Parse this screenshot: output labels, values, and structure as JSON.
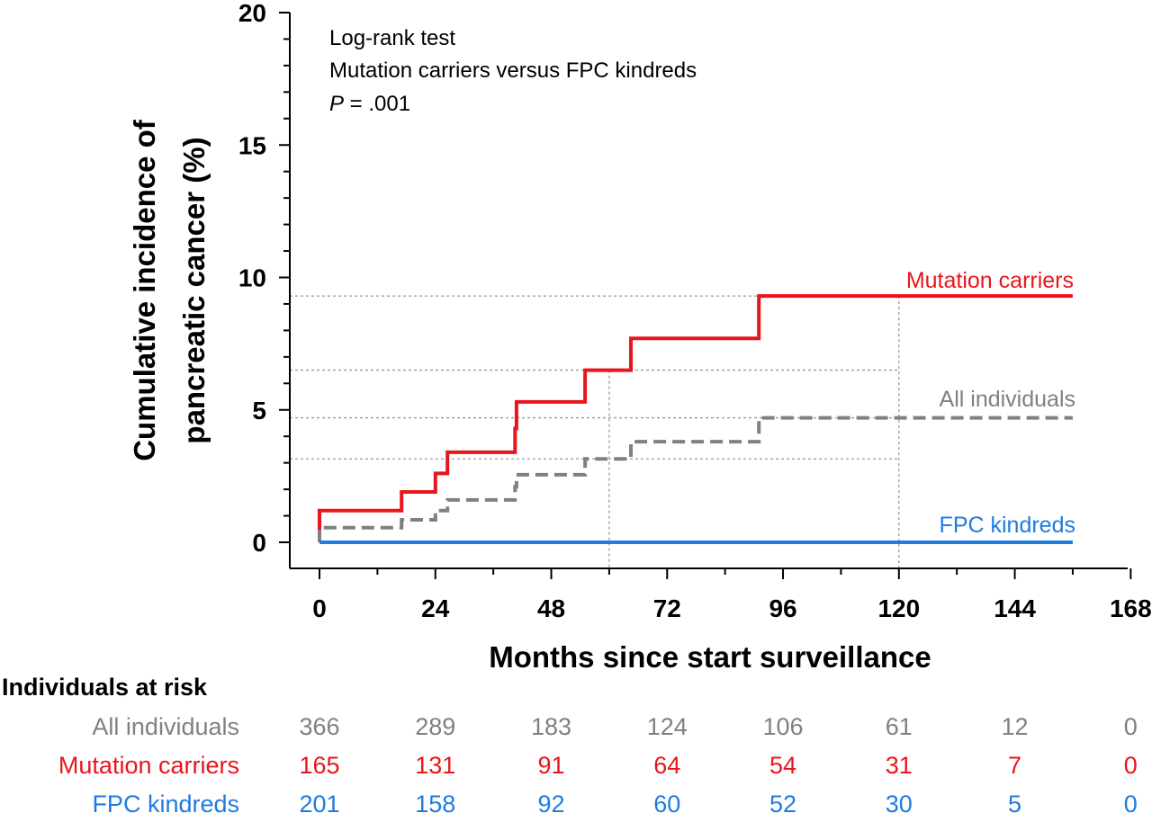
{
  "colors": {
    "mutation": "#e8161c",
    "all": "#808080",
    "fpc": "#1f7be0",
    "text": "#000000",
    "ref": "#999999"
  },
  "chart_data": {
    "type": "line",
    "ylabel": [
      "Cumulative incidence of",
      "pancreatic cancer (%)"
    ],
    "xlabel": "Months since start surveillance",
    "xlim": [
      0,
      168
    ],
    "ylim": [
      0,
      20
    ],
    "x_ticks": [
      0,
      24,
      48,
      72,
      96,
      120,
      144,
      168
    ],
    "y_ticks": [
      0,
      5,
      10,
      15,
      20
    ],
    "annotation": {
      "line1": "Log-rank test",
      "line2": "Mutation carriers versus FPC kindreds",
      "p_label": "P",
      "p_value": " = .001"
    },
    "series": [
      {
        "name": "Mutation carriers",
        "key": "mutation",
        "style": "solid",
        "steps": [
          [
            0,
            0
          ],
          [
            0,
            1.2
          ],
          [
            17,
            1.2
          ],
          [
            17,
            1.9
          ],
          [
            24,
            1.9
          ],
          [
            24,
            2.6
          ],
          [
            26.5,
            2.6
          ],
          [
            26.5,
            3.4
          ],
          [
            40.5,
            3.4
          ],
          [
            40.5,
            4.3
          ],
          [
            40.8,
            4.3
          ],
          [
            40.8,
            5.3
          ],
          [
            55,
            5.3
          ],
          [
            55,
            6.5
          ],
          [
            64.5,
            6.5
          ],
          [
            64.5,
            7.7
          ],
          [
            91,
            7.7
          ],
          [
            91,
            9.3
          ],
          [
            156,
            9.3
          ]
        ]
      },
      {
        "name": "All individuals",
        "key": "all",
        "style": "dashed",
        "steps": [
          [
            0,
            0
          ],
          [
            0,
            0.55
          ],
          [
            17,
            0.55
          ],
          [
            17,
            0.85
          ],
          [
            24,
            0.85
          ],
          [
            24,
            1.2
          ],
          [
            26.5,
            1.2
          ],
          [
            26.5,
            1.6
          ],
          [
            40.5,
            1.6
          ],
          [
            40.5,
            2.1
          ],
          [
            40.8,
            2.1
          ],
          [
            40.8,
            2.55
          ],
          [
            55,
            2.55
          ],
          [
            55,
            3.15
          ],
          [
            64.5,
            3.15
          ],
          [
            64.5,
            3.8
          ],
          [
            91,
            3.8
          ],
          [
            91,
            4.7
          ],
          [
            156,
            4.7
          ]
        ]
      },
      {
        "name": "FPC kindreds",
        "key": "fpc",
        "style": "solid",
        "steps": [
          [
            0,
            0
          ],
          [
            156,
            0
          ]
        ]
      }
    ],
    "reference_lines": {
      "horizontal_y": [
        9.3,
        6.5,
        4.7,
        3.15
      ],
      "vertical_x": [
        60,
        120
      ]
    },
    "risk_table": {
      "title": "Individuals at risk",
      "times": [
        0,
        24,
        48,
        72,
        96,
        120,
        144,
        168
      ],
      "rows": [
        {
          "label": "All individuals",
          "key": "all",
          "values": [
            366,
            289,
            183,
            124,
            106,
            61,
            12,
            0
          ]
        },
        {
          "label": "Mutation carriers",
          "key": "mutation",
          "values": [
            165,
            131,
            91,
            64,
            54,
            31,
            7,
            0
          ]
        },
        {
          "label": "FPC kindreds",
          "key": "fpc",
          "values": [
            201,
            158,
            92,
            60,
            52,
            30,
            5,
            0
          ]
        }
      ]
    }
  }
}
